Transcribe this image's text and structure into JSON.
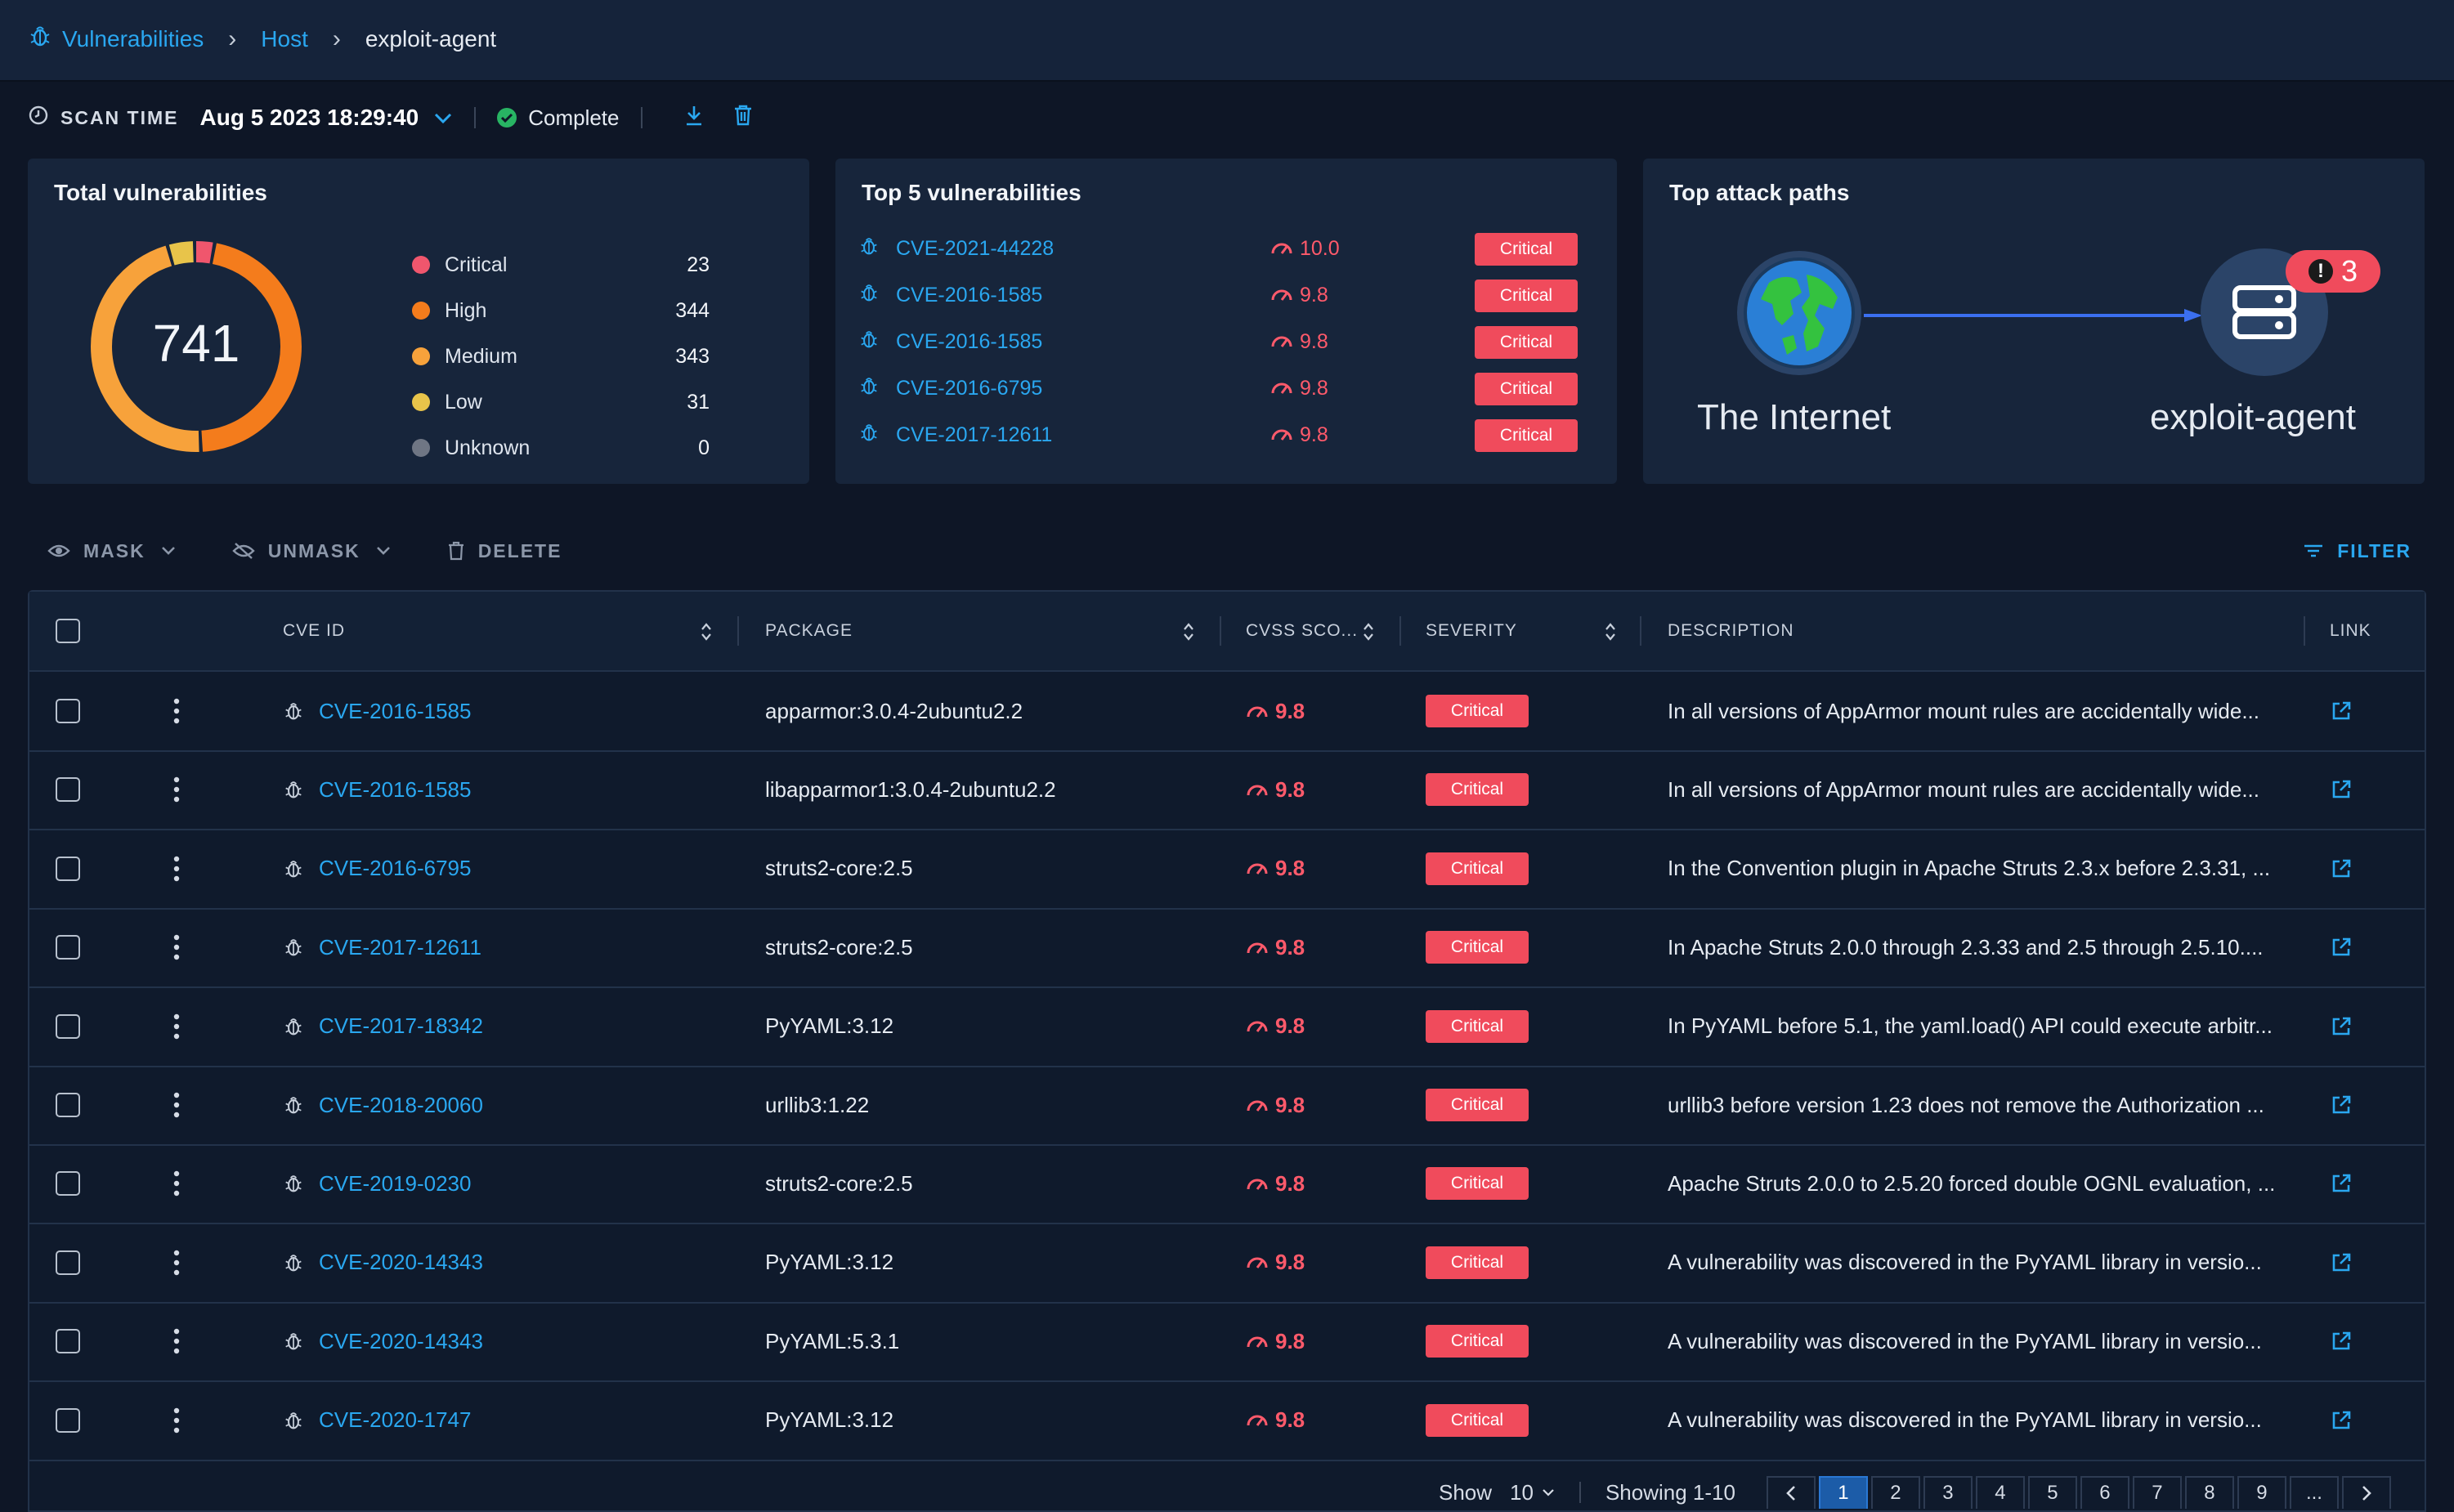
{
  "breadcrumb": {
    "items": [
      "Vulnerabilities",
      "Host",
      "exploit-agent"
    ]
  },
  "scan": {
    "label": "SCAN TIME",
    "time": "Aug 5 2023 18:29:40",
    "status": "Complete"
  },
  "total": {
    "title": "Total vulnerabilities",
    "count": "741",
    "legend": [
      {
        "label": "Critical",
        "value": "23",
        "color": "#f0566d"
      },
      {
        "label": "High",
        "value": "344",
        "color": "#f47c1c"
      },
      {
        "label": "Medium",
        "value": "343",
        "color": "#f7a23b"
      },
      {
        "label": "Low",
        "value": "31",
        "color": "#e8c44a"
      },
      {
        "label": "Unknown",
        "value": "0",
        "color": "#6f7684"
      }
    ]
  },
  "top5": {
    "title": "Top 5 vulnerabilities",
    "items": [
      {
        "id": "CVE-2021-44228",
        "score": "10.0",
        "severity": "Critical"
      },
      {
        "id": "CVE-2016-1585",
        "score": "9.8",
        "severity": "Critical"
      },
      {
        "id": "CVE-2016-1585",
        "score": "9.8",
        "severity": "Critical"
      },
      {
        "id": "CVE-2016-6795",
        "score": "9.8",
        "severity": "Critical"
      },
      {
        "id": "CVE-2017-12611",
        "score": "9.8",
        "severity": "Critical"
      }
    ]
  },
  "attack": {
    "title": "Top attack paths",
    "source": "The Internet",
    "target": "exploit-agent",
    "alerts": "3"
  },
  "toolbar": {
    "mask": "MASK",
    "unmask": "UNMASK",
    "delete": "DELETE",
    "filter": "FILTER"
  },
  "table": {
    "headers": {
      "cve": "CVE ID",
      "package": "PACKAGE",
      "cvss": "CVSS SCO...",
      "severity": "SEVERITY",
      "description": "DESCRIPTION",
      "link": "LINK"
    },
    "rows": [
      {
        "cve": "CVE-2016-1585",
        "package": "apparmor:3.0.4-2ubuntu2.2",
        "score": "9.8",
        "severity": "Critical",
        "description": "In all versions of AppArmor mount rules are accidentally wide..."
      },
      {
        "cve": "CVE-2016-1585",
        "package": "libapparmor1:3.0.4-2ubuntu2.2",
        "score": "9.8",
        "severity": "Critical",
        "description": "In all versions of AppArmor mount rules are accidentally wide..."
      },
      {
        "cve": "CVE-2016-6795",
        "package": "struts2-core:2.5",
        "score": "9.8",
        "severity": "Critical",
        "description": "In the Convention plugin in Apache Struts 2.3.x before 2.3.31, ..."
      },
      {
        "cve": "CVE-2017-12611",
        "package": "struts2-core:2.5",
        "score": "9.8",
        "severity": "Critical",
        "description": "In Apache Struts 2.0.0 through 2.3.33 and 2.5 through 2.5.10...."
      },
      {
        "cve": "CVE-2017-18342",
        "package": "PyYAML:3.12",
        "score": "9.8",
        "severity": "Critical",
        "description": "In PyYAML before 5.1, the yaml.load() API could execute arbitr..."
      },
      {
        "cve": "CVE-2018-20060",
        "package": "urllib3:1.22",
        "score": "9.8",
        "severity": "Critical",
        "description": "urllib3 before version 1.23 does not remove the Authorization ..."
      },
      {
        "cve": "CVE-2019-0230",
        "package": "struts2-core:2.5",
        "score": "9.8",
        "severity": "Critical",
        "description": "Apache Struts 2.0.0 to 2.5.20 forced double OGNL evaluation, ..."
      },
      {
        "cve": "CVE-2020-14343",
        "package": "PyYAML:3.12",
        "score": "9.8",
        "severity": "Critical",
        "description": "A vulnerability was discovered in the PyYAML library in versio..."
      },
      {
        "cve": "CVE-2020-14343",
        "package": "PyYAML:5.3.1",
        "score": "9.8",
        "severity": "Critical",
        "description": "A vulnerability was discovered in the PyYAML library in versio..."
      },
      {
        "cve": "CVE-2020-1747",
        "package": "PyYAML:3.12",
        "score": "9.8",
        "severity": "Critical",
        "description": "A vulnerability was discovered in the PyYAML library in versio..."
      }
    ]
  },
  "pagination": {
    "show_label": "Show",
    "page_size": "10",
    "showing": "Showing 1-10",
    "pages": [
      "1",
      "2",
      "3",
      "4",
      "5",
      "6",
      "7",
      "8",
      "9",
      "..."
    ]
  }
}
